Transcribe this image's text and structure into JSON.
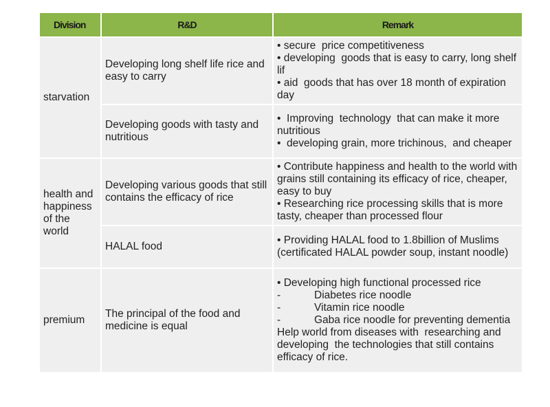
{
  "header": {
    "division": "Division",
    "rd": "R&D",
    "remark": "Remark"
  },
  "rows": {
    "starvation": {
      "division": "starvation",
      "items": [
        {
          "rd": "Developing long shelf life rice and easy to carry",
          "remark": [
            "• secure  price competitiveness",
            "• developing  goods that is easy to carry, long shelf lif",
            "• aid  goods that has over 18 month of expiration day"
          ]
        },
        {
          "rd": "Developing goods with tasty and nutritious",
          "remark": [
            "•  Improving  technology  that can make it more nutritious",
            "•  developing grain, more trichinous,  and cheaper"
          ]
        }
      ]
    },
    "health": {
      "division": "health and happiness of the world",
      "items": [
        {
          "rd": "Developing various goods that still contains the efficacy of rice",
          "remark": [
            "• Contribute happiness and health to the world with grains still containing its efficacy of rice, cheaper, easy to buy",
            "• Researching rice processing skills that is more tasty, cheaper than processed flour"
          ]
        },
        {
          "rd": "HALAL food",
          "remark": [
            "• Providing HALAL food to 1.8billion of Muslims (certificated HALAL powder soup, instant noodle)"
          ]
        }
      ]
    },
    "premium": {
      "division": "premium",
      "rd": "The  principal of the food and medicine is equal",
      "remark": {
        "intro": "• Developing high functional processed rice",
        "dash": "-",
        "sub": [
          "Diabetes rice noodle",
          "Vitamin rice noodle",
          "Gaba rice noodle for  preventing dementia"
        ],
        "outro": "Help world from diseases with  researching and developing  the technologies that still contains efficacy of rice."
      }
    }
  }
}
